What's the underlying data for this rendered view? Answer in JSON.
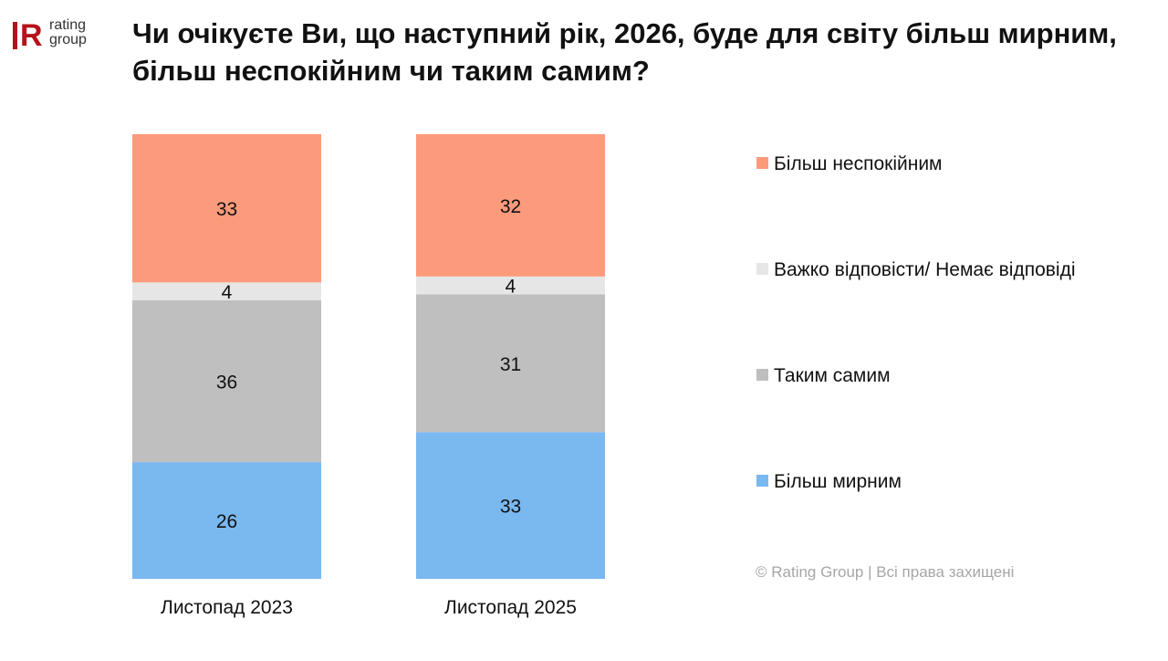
{
  "logo": {
    "mark": "R",
    "line1": "rating",
    "line2": "group"
  },
  "title": "Чи очікуєте Ви, що наступний рік, 2026, буде для світу більш мирним, більш неспокійним чи таким самим?",
  "copyright": "© Rating Group | Всі права захищені",
  "chart_data": {
    "type": "bar",
    "stacked": true,
    "title": "Чи очікуєте Ви, що наступний рік, 2026, буде для світу більш мирним, більш неспокійним чи таким самим?",
    "xlabel": "",
    "ylabel": "",
    "categories": [
      "Листопад 2023",
      "Листопад 2025"
    ],
    "series": [
      {
        "name": "Більш мирним",
        "color": "#7ab8f0",
        "values": [
          26,
          33
        ]
      },
      {
        "name": "Таким самим",
        "color": "#bfbfbf",
        "values": [
          36,
          31
        ]
      },
      {
        "name": "Важко відповісти/ Немає відповіді",
        "color": "#e6e6e6",
        "values": [
          4,
          4
        ]
      },
      {
        "name": "Більш неспокійним",
        "color": "#fc9b7b",
        "values": [
          33,
          32
        ]
      }
    ],
    "legend_order": [
      "Більш неспокійним",
      "Важко відповісти/ Немає відповіді",
      "Таким самим",
      "Більш мирним"
    ],
    "legend_position": "right",
    "grid": false,
    "data_labels": true
  }
}
